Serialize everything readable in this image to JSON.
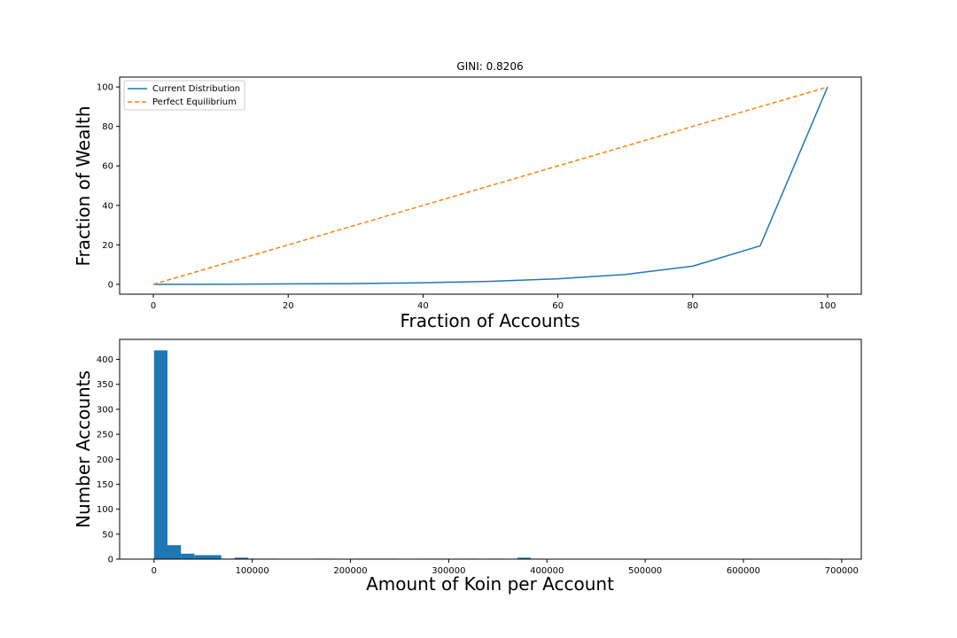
{
  "chart_data": [
    {
      "type": "line",
      "title": "GINI: 0.8206",
      "xlabel": "Fraction of Accounts",
      "ylabel": "Fraction of Wealth",
      "xlim": [
        -5,
        105
      ],
      "ylim": [
        -5,
        105
      ],
      "xticks": [
        0,
        20,
        40,
        60,
        80,
        100
      ],
      "yticks": [
        0,
        20,
        40,
        60,
        80,
        100
      ],
      "grid": false,
      "legend_position": "top-left",
      "series": [
        {
          "name": "Current Distribution",
          "color": "#1f77b4",
          "style": "solid",
          "x": [
            0,
            10,
            20,
            30,
            40,
            50,
            60,
            70,
            80,
            90,
            100
          ],
          "y": [
            0,
            0.05,
            0.2,
            0.4,
            0.8,
            1.5,
            2.8,
            5.0,
            9.2,
            19.5,
            100
          ]
        },
        {
          "name": "Perfect Equilibrium",
          "color": "#ff7f0e",
          "style": "dashed",
          "x": [
            0,
            100
          ],
          "y": [
            0,
            100
          ]
        }
      ]
    },
    {
      "type": "bar",
      "subtype": "histogram",
      "title": "",
      "xlabel": "Amount of Koin per Account",
      "ylabel": "Number Accounts",
      "xlim": [
        -35000,
        720000
      ],
      "ylim": [
        0,
        440
      ],
      "xticks": [
        0,
        100000,
        200000,
        300000,
        400000,
        500000,
        600000,
        700000
      ],
      "yticks": [
        0,
        50,
        100,
        150,
        200,
        250,
        300,
        350,
        400
      ],
      "grid": false,
      "color": "#1f77b4",
      "bin_start": 0,
      "bin_width": 13700,
      "values": [
        418,
        28,
        11,
        8,
        8,
        1,
        3,
        1,
        1,
        0,
        0,
        0,
        1,
        0,
        0,
        1,
        1,
        1,
        0,
        0,
        1,
        1,
        0,
        1,
        0,
        1,
        0,
        3,
        1,
        0,
        0,
        0,
        0,
        0,
        0,
        0,
        0,
        0,
        0,
        0,
        0,
        0,
        0,
        0,
        0,
        0,
        0,
        0,
        1,
        1
      ]
    }
  ]
}
